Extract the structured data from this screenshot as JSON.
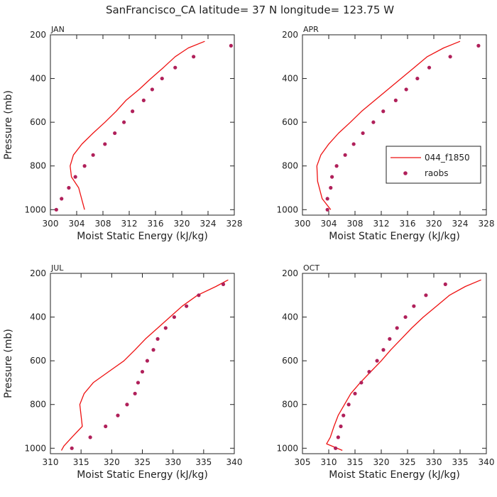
{
  "title": "SanFrancisco_CA   latitude= 37 N longitude= 123.75 W",
  "legend": {
    "model_label": "044_f1850",
    "obs_label": "raobs"
  },
  "colors": {
    "model": "#ee1111",
    "obs": "#b0205a",
    "axis": "#222222"
  },
  "chart_data": [
    {
      "type": "line",
      "panel_label": "JAN",
      "xlabel": "Moist Static Energy (kJ/kg)",
      "ylabel": "Pressure (mb)",
      "xlim": [
        300,
        328
      ],
      "ylim": [
        1025,
        200
      ],
      "xticks": [
        300,
        304,
        308,
        312,
        316,
        320,
        324,
        328
      ],
      "yticks": [
        200,
        400,
        600,
        800,
        1000
      ],
      "series": [
        {
          "name": "044_f1850",
          "kind": "line",
          "x": [
            323.5,
            321,
            319,
            317.2,
            315.3,
            313.5,
            311.5,
            310,
            308.3,
            306.5,
            304.8,
            303.5,
            303,
            303.2,
            304.3,
            305.2
          ],
          "y": [
            230,
            260,
            300,
            350,
            400,
            450,
            500,
            550,
            600,
            650,
            700,
            750,
            800,
            850,
            900,
            1000
          ]
        },
        {
          "name": "raobs",
          "kind": "points",
          "x": [
            327.5,
            321.8,
            319,
            317,
            315.5,
            314.2,
            312.5,
            311.2,
            309.8,
            308.3,
            306.5,
            305.2,
            303.8,
            302.8,
            301.7,
            300.9
          ],
          "y": [
            250,
            300,
            350,
            400,
            450,
            500,
            550,
            600,
            650,
            700,
            750,
            800,
            850,
            900,
            950,
            1000
          ]
        }
      ]
    },
    {
      "type": "line",
      "panel_label": "APR",
      "xlabel": "Moist Static Energy (kJ/kg)",
      "ylabel": "",
      "xlim": [
        300,
        328
      ],
      "ylim": [
        1025,
        200
      ],
      "xticks": [
        300,
        304,
        308,
        312,
        316,
        320,
        324,
        328
      ],
      "yticks": [
        200,
        400,
        600,
        800,
        1000
      ],
      "series": [
        {
          "name": "044_f1850",
          "kind": "line",
          "x": [
            324,
            321.5,
            319,
            317,
            315,
            313,
            311,
            309,
            307.3,
            305.5,
            304,
            302.8,
            302.2,
            302.3,
            303,
            304.3
          ],
          "y": [
            230,
            260,
            300,
            350,
            400,
            450,
            500,
            550,
            600,
            650,
            700,
            750,
            800,
            870,
            950,
            1000
          ]
        },
        {
          "name": "raobs",
          "kind": "points",
          "x": [
            326.8,
            322.5,
            319.3,
            317.5,
            315.8,
            314.2,
            312.3,
            310.8,
            309.2,
            307.8,
            306.5,
            305.2,
            304.5,
            304.3,
            303.8,
            303.8
          ],
          "y": [
            250,
            300,
            350,
            400,
            450,
            500,
            550,
            600,
            650,
            700,
            750,
            800,
            850,
            900,
            950,
            1000
          ]
        }
      ]
    },
    {
      "type": "line",
      "panel_label": "JUL",
      "xlabel": "Moist Static Energy (kJ/kg)",
      "ylabel": "Pressure (mb)",
      "xlim": [
        310,
        340
      ],
      "ylim": [
        1025,
        200
      ],
      "xticks": [
        310,
        315,
        320,
        325,
        330,
        335,
        340
      ],
      "yticks": [
        200,
        400,
        600,
        800,
        1000
      ],
      "series": [
        {
          "name": "044_f1850",
          "kind": "line",
          "x": [
            339,
            337,
            334,
            331.5,
            329.5,
            327.5,
            325.5,
            323.8,
            322,
            319.5,
            317,
            315.5,
            314.8,
            315.2,
            313.5,
            312.2,
            311.8
          ],
          "y": [
            230,
            260,
            300,
            350,
            400,
            450,
            500,
            550,
            600,
            650,
            700,
            750,
            800,
            900,
            950,
            990,
            1010
          ]
        },
        {
          "name": "raobs",
          "kind": "points",
          "x": [
            338.2,
            334.2,
            332.2,
            330.2,
            328.8,
            327.5,
            326.8,
            325.8,
            325,
            324.3,
            323.8,
            322.5,
            321,
            319,
            316.5,
            313.5
          ],
          "y": [
            250,
            300,
            350,
            400,
            450,
            500,
            550,
            600,
            650,
            700,
            750,
            800,
            850,
            900,
            950,
            1000
          ]
        }
      ]
    },
    {
      "type": "line",
      "panel_label": "OCT",
      "xlabel": "Moist Static Energy (kJ/kg)",
      "ylabel": "",
      "xlim": [
        305,
        340
      ],
      "ylim": [
        1025,
        200
      ],
      "xticks": [
        305,
        310,
        315,
        320,
        325,
        330,
        335,
        340
      ],
      "yticks": [
        200,
        400,
        600,
        800,
        1000
      ],
      "series": [
        {
          "name": "044_f1850",
          "kind": "line",
          "x": [
            339,
            336,
            333,
            330.5,
            328,
            325.8,
            323.8,
            321.8,
            320,
            318,
            316,
            314.2,
            313,
            311.8,
            311,
            310.3,
            309.6,
            312.6
          ],
          "y": [
            230,
            260,
            300,
            350,
            400,
            450,
            500,
            550,
            600,
            650,
            700,
            750,
            800,
            850,
            900,
            950,
            980,
            1010
          ]
        },
        {
          "name": "raobs",
          "kind": "points",
          "x": [
            332.2,
            328.5,
            326.2,
            324.6,
            323,
            321.6,
            320.4,
            319.2,
            317.7,
            316.2,
            315,
            313.8,
            312.8,
            312.3,
            311.8,
            311.3
          ],
          "y": [
            250,
            300,
            350,
            400,
            450,
            500,
            550,
            600,
            650,
            700,
            750,
            800,
            850,
            900,
            950,
            1000
          ]
        }
      ]
    }
  ]
}
